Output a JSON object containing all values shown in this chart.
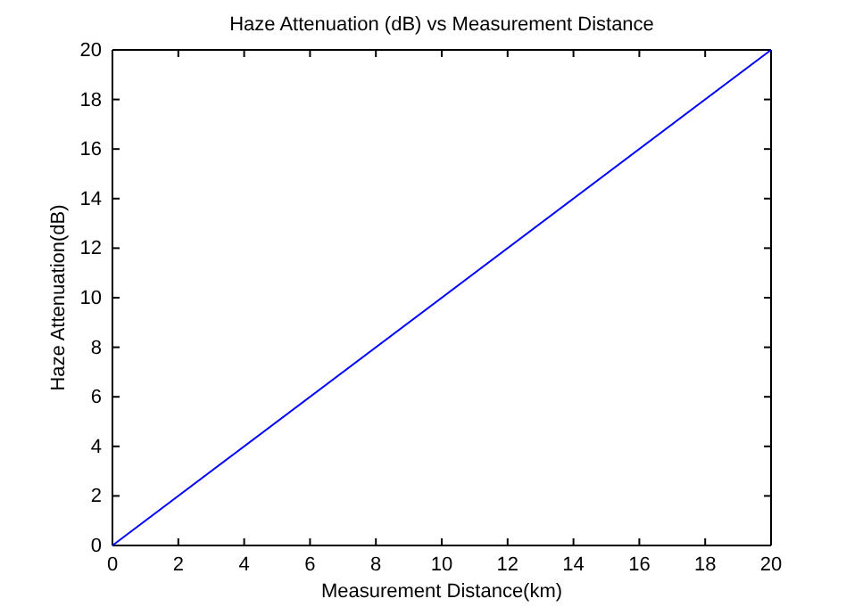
{
  "chart_data": {
    "type": "line",
    "title": "Haze Attenuation (dB) vs Measurement Distance",
    "xlabel": "Measurement Distance(km)",
    "ylabel": "Haze Attenuation(dB)",
    "x": [
      0,
      20
    ],
    "series": [
      {
        "color": "#0000ff",
        "values": [
          0,
          20
        ]
      }
    ],
    "xlim": [
      0,
      20
    ],
    "ylim": [
      0,
      20
    ],
    "xticks": [
      0,
      2,
      4,
      6,
      8,
      10,
      12,
      14,
      16,
      18,
      20
    ],
    "yticks": [
      0,
      2,
      4,
      6,
      8,
      10,
      12,
      14,
      16,
      18,
      20
    ],
    "grid": false,
    "marker": "none",
    "line_style": "solid"
  }
}
